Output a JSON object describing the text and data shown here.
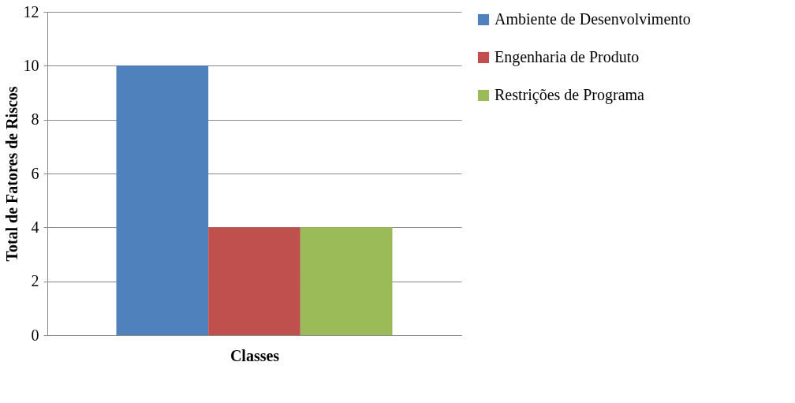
{
  "chart_data": {
    "type": "bar",
    "xlabel": "Classes",
    "ylabel": "Total de Fatores de Riscos",
    "categories": [
      null
    ],
    "series": [
      {
        "name": "Ambiente de Desenvolvimento",
        "color": "#4f81bd",
        "values": [
          10
        ]
      },
      {
        "name": "Engenharia de Produto",
        "color": "#c0504d",
        "values": [
          4
        ]
      },
      {
        "name": "Restrições de Programa",
        "color": "#9bbb59",
        "values": [
          4
        ]
      }
    ],
    "ylim": [
      0,
      12
    ],
    "yticks": [
      0,
      2,
      4,
      6,
      8,
      10,
      12
    ],
    "grid": "y",
    "legend": "right"
  }
}
